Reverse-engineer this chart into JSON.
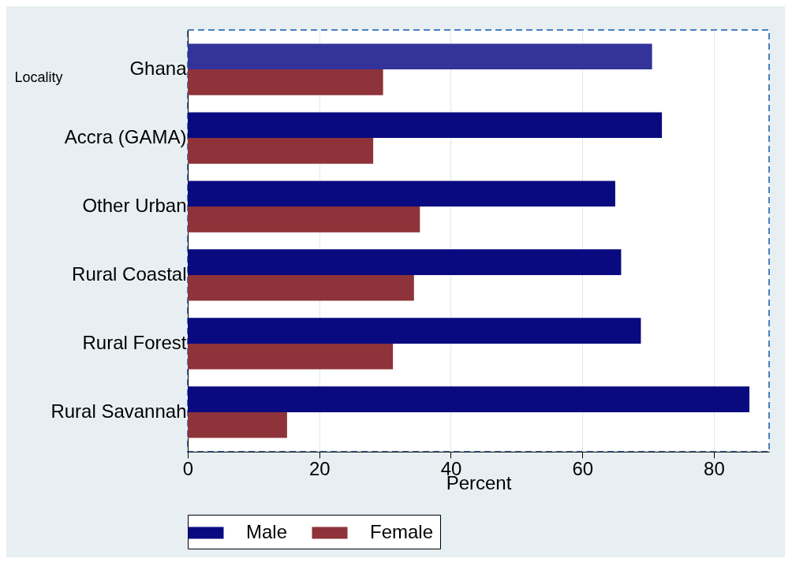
{
  "chart_data": {
    "type": "bar",
    "orientation": "horizontal",
    "ylabel": "Locality",
    "xlabel": "Percent",
    "categories": [
      "Ghana",
      "Accra (GAMA)",
      "Other Urban",
      "Rural Coastal",
      "Rural Forest",
      "Rural Savannah"
    ],
    "series": [
      {
        "name": "Male",
        "color": "#0a0a80",
        "colors": [
          "#333399",
          "#0a0a80",
          "#0a0a80",
          "#0a0a80",
          "#0a0a80",
          "#0a0a80"
        ],
        "values": [
          70.6,
          72.1,
          65.0,
          65.9,
          68.9,
          85.4
        ]
      },
      {
        "name": "Female",
        "color": "#8e3339",
        "values": [
          29.7,
          28.2,
          35.3,
          34.4,
          31.2,
          15.1
        ]
      }
    ],
    "xlim": [
      0,
      88.4
    ],
    "xticks": [
      0,
      20,
      40,
      60,
      80
    ],
    "grid": "x",
    "legend": "bottom"
  }
}
